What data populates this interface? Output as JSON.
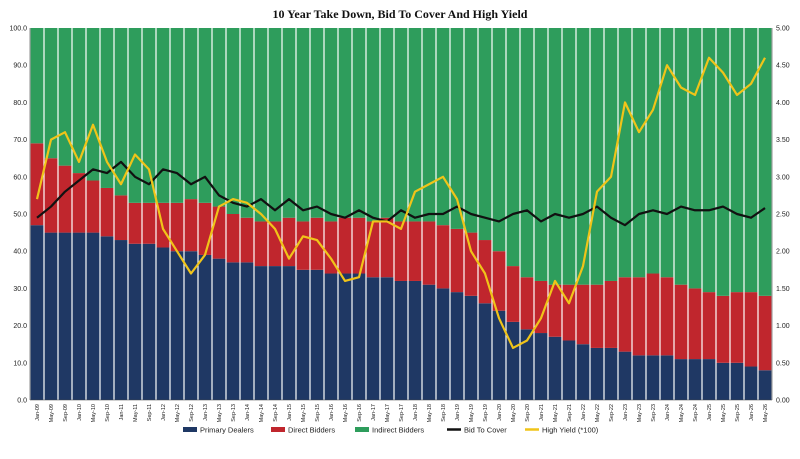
{
  "chart_data": {
    "type": "bar",
    "stacked": true,
    "title": "10 Year Take Down, Bid To Cover And High Yield",
    "left_axis": {
      "ylim": [
        0,
        100
      ],
      "ticks": [
        "0.0",
        "10.0",
        "20.0",
        "30.0",
        "40.0",
        "50.0",
        "60.0",
        "70.0",
        "80.0",
        "90.0",
        "100.0"
      ]
    },
    "right_axis": {
      "ylim": [
        0,
        5
      ],
      "ticks": [
        "0.00",
        "0.50",
        "1.00",
        "1.50",
        "2.00",
        "2.50",
        "3.00",
        "3.50",
        "4.00",
        "4.50",
        "5.00"
      ]
    },
    "x_tick_labels": [
      "Jan-09",
      "May-09",
      "Sep-09",
      "Jan-10",
      "May-10",
      "Sep-10",
      "Jan-11",
      "May-11",
      "Sep-11",
      "Jan-12",
      "May-12",
      "Sep-12",
      "Jan-13",
      "May-13",
      "Sep-13",
      "Jan-14",
      "May-14",
      "Sep-14",
      "Jan-15",
      "May-15",
      "Sep-15",
      "Jan-16",
      "May-16",
      "Sep-16",
      "Jan-17",
      "May-17",
      "Sep-17",
      "Jan-18",
      "May-18",
      "Sep-18",
      "Jan-19",
      "May-19",
      "Sep-19",
      "Jan-20",
      "May-20",
      "Sep-20",
      "Jan-21",
      "May-21",
      "Sep-21",
      "Jan-22",
      "May-22",
      "Sep-22",
      "Jan-23",
      "May-23",
      "Sep-23",
      "Jan-24",
      "May-24",
      "Sep-24",
      "Jan-25",
      "May-25",
      "Sep-25",
      "Jan-26",
      "May-26"
    ],
    "legend_position": "bottom",
    "grid": false,
    "series": [
      {
        "name": "Primary Dealers",
        "type": "bar",
        "axis": "left",
        "color": "#1f3864",
        "values": [
          47,
          45,
          45,
          45,
          45,
          44,
          43,
          42,
          42,
          41,
          40,
          40,
          39,
          38,
          37,
          37,
          36,
          36,
          36,
          35,
          35,
          34,
          34,
          34,
          33,
          33,
          32,
          32,
          31,
          30,
          29,
          28,
          26,
          24,
          21,
          19,
          18,
          17,
          16,
          15,
          14,
          14,
          13,
          12,
          12,
          12,
          11,
          11,
          11,
          10,
          10,
          9,
          8
        ]
      },
      {
        "name": "Direct Bidders",
        "type": "bar",
        "axis": "left",
        "color": "#c0262d",
        "values": [
          22,
          20,
          18,
          16,
          14,
          13,
          12,
          11,
          11,
          12,
          13,
          14,
          14,
          14,
          13,
          12,
          12,
          12,
          13,
          13,
          14,
          14,
          15,
          15,
          15,
          16,
          16,
          16,
          17,
          17,
          17,
          17,
          17,
          16,
          15,
          14,
          14,
          14,
          15,
          16,
          17,
          18,
          20,
          21,
          22,
          21,
          20,
          19,
          18,
          18,
          19,
          20,
          20
        ]
      },
      {
        "name": "Indirect Bidders",
        "type": "bar",
        "axis": "left",
        "color": "#2e9d5c",
        "values": [
          31,
          35,
          37,
          39,
          41,
          43,
          45,
          47,
          47,
          47,
          47,
          46,
          47,
          48,
          50,
          51,
          52,
          52,
          51,
          52,
          51,
          52,
          51,
          51,
          52,
          51,
          52,
          52,
          52,
          53,
          54,
          55,
          57,
          60,
          64,
          67,
          68,
          69,
          69,
          69,
          69,
          68,
          67,
          67,
          66,
          67,
          69,
          70,
          71,
          72,
          71,
          71,
          72
        ]
      },
      {
        "name": "Bid To Cover",
        "type": "line",
        "axis": "right",
        "color": "#111111",
        "values": [
          2.45,
          2.6,
          2.8,
          2.95,
          3.1,
          3.05,
          3.2,
          3.0,
          2.9,
          3.1,
          3.05,
          2.9,
          3.0,
          2.75,
          2.65,
          2.6,
          2.7,
          2.55,
          2.7,
          2.55,
          2.6,
          2.5,
          2.45,
          2.55,
          2.45,
          2.4,
          2.55,
          2.45,
          2.5,
          2.5,
          2.6,
          2.5,
          2.45,
          2.4,
          2.5,
          2.55,
          2.4,
          2.5,
          2.45,
          2.5,
          2.6,
          2.45,
          2.35,
          2.5,
          2.55,
          2.5,
          2.6,
          2.55,
          2.55,
          2.6,
          2.5,
          2.45,
          2.58
        ]
      },
      {
        "name": "High Yield (*100)",
        "type": "line",
        "axis": "right",
        "color": "#f0c419",
        "values": [
          2.7,
          3.5,
          3.6,
          3.2,
          3.7,
          3.2,
          2.9,
          3.3,
          3.1,
          2.3,
          2.0,
          1.7,
          1.95,
          2.6,
          2.7,
          2.65,
          2.5,
          2.3,
          1.9,
          2.2,
          2.15,
          1.9,
          1.6,
          1.65,
          2.4,
          2.4,
          2.3,
          2.8,
          2.9,
          3.0,
          2.7,
          2.0,
          1.7,
          1.1,
          0.7,
          0.8,
          1.1,
          1.6,
          1.3,
          1.8,
          2.8,
          3.0,
          4.0,
          3.6,
          3.9,
          4.5,
          4.2,
          4.1,
          4.6,
          4.4,
          4.1,
          4.25,
          4.6
        ]
      }
    ]
  }
}
